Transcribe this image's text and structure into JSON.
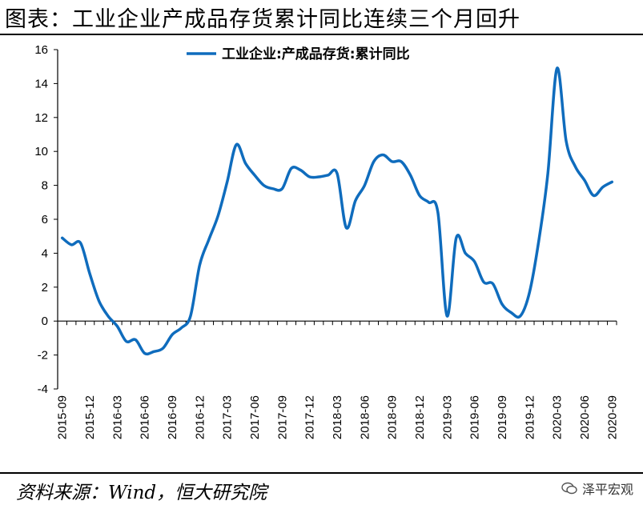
{
  "header": {
    "title": "图表：工业企业产成品存货累计同比连续三个月回升"
  },
  "footer": {
    "source": "资料来源：Wind，恒大研究院",
    "watermark": "泽平宏观",
    "watermark_icon": "wechat-icon"
  },
  "colors": {
    "line": "#0f6cbd",
    "axis": "#000000"
  },
  "chart_data": {
    "type": "line",
    "title": "",
    "xlabel": "",
    "ylabel": "",
    "ylim": [
      -4,
      16
    ],
    "yticks": [
      -4,
      -2,
      0,
      2,
      4,
      6,
      8,
      10,
      12,
      14,
      16
    ],
    "legend": "top-center",
    "grid": false,
    "x_tick_labels": [
      "2015-09",
      "2015-12",
      "2016-03",
      "2016-06",
      "2016-09",
      "2016-12",
      "2017-03",
      "2017-06",
      "2017-09",
      "2017-12",
      "2018-03",
      "2018-06",
      "2018-09",
      "2018-12",
      "2019-03",
      "2019-06",
      "2019-09",
      "2019-12",
      "2020-03",
      "2020-06",
      "2020-09"
    ],
    "series": [
      {
        "name": "工业企业:产成品存货:累计同比",
        "x": [
          "2015-09",
          "2015-10",
          "2015-11",
          "2015-12",
          "2016-01",
          "2016-02",
          "2016-03",
          "2016-04",
          "2016-05",
          "2016-06",
          "2016-07",
          "2016-08",
          "2016-09",
          "2016-10",
          "2016-11",
          "2016-12",
          "2017-01",
          "2017-02",
          "2017-03",
          "2017-04",
          "2017-05",
          "2017-06",
          "2017-07",
          "2017-08",
          "2017-09",
          "2017-10",
          "2017-11",
          "2017-12",
          "2018-01",
          "2018-02",
          "2018-03",
          "2018-04",
          "2018-05",
          "2018-06",
          "2018-07",
          "2018-08",
          "2018-09",
          "2018-10",
          "2018-11",
          "2018-12",
          "2019-01",
          "2019-02",
          "2019-03",
          "2019-04",
          "2019-05",
          "2019-06",
          "2019-07",
          "2019-08",
          "2019-09",
          "2019-10",
          "2019-11",
          "2019-12",
          "2020-01",
          "2020-02",
          "2020-03",
          "2020-04",
          "2020-05",
          "2020-06",
          "2020-07",
          "2020-08",
          "2020-09"
        ],
        "values": [
          4.9,
          4.5,
          4.6,
          2.8,
          1.2,
          0.3,
          -0.3,
          -1.2,
          -1.1,
          -1.9,
          -1.8,
          -1.6,
          -0.8,
          -0.4,
          0.3,
          3.3,
          4.8,
          6.2,
          8.2,
          10.4,
          9.3,
          8.6,
          8.0,
          7.8,
          7.8,
          9.0,
          8.9,
          8.5,
          8.5,
          8.6,
          8.7,
          5.5,
          7.1,
          8.0,
          9.4,
          9.8,
          9.4,
          9.4,
          8.6,
          7.4,
          7.0,
          6.4,
          0.3,
          4.9,
          4.0,
          3.5,
          2.3,
          2.2,
          1.0,
          0.5,
          0.3,
          1.7,
          4.7,
          8.7,
          14.9,
          10.6,
          9.1,
          8.3,
          7.4,
          7.9,
          8.2
        ]
      }
    ]
  }
}
